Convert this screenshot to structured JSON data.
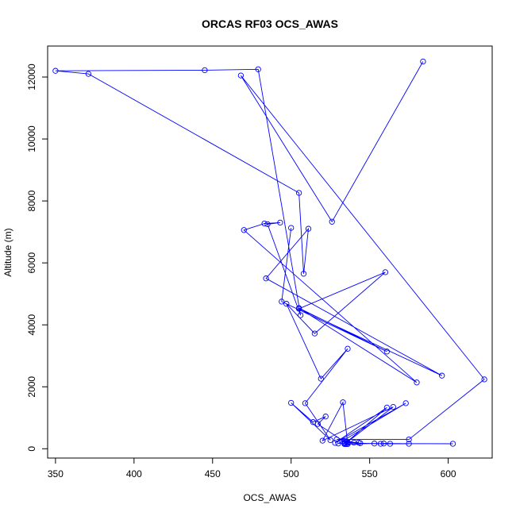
{
  "chart_data": {
    "type": "line",
    "title": "ORCAS RF03 OCS_AWAS",
    "xlabel": "OCS_AWAS",
    "ylabel": "Altitude (m)",
    "xlim": [
      345,
      628
    ],
    "ylim": [
      -300,
      13000
    ],
    "x_ticks": [
      350,
      400,
      450,
      500,
      550,
      600
    ],
    "y_ticks": [
      0,
      2000,
      4000,
      6000,
      8000,
      10000,
      12000
    ],
    "grid": false,
    "markers": "open-circle",
    "series": [
      {
        "color": "#0000ff",
        "points": [
          [
            584,
            12500
          ],
          [
            526,
            7330
          ],
          [
            468,
            12050
          ],
          [
            623,
            2240
          ],
          [
            575,
            300
          ],
          [
            529,
            300
          ],
          [
            540,
            200
          ],
          [
            544,
            180
          ],
          [
            534,
            250
          ],
          [
            536,
            200
          ],
          [
            535,
            150
          ],
          [
            553,
            170
          ],
          [
            603,
            160
          ],
          [
            559,
            170
          ],
          [
            575,
            160
          ],
          [
            563,
            160
          ],
          [
            557,
            160
          ],
          [
            536,
            190
          ],
          [
            543,
            200
          ],
          [
            534,
            200
          ],
          [
            536,
            190
          ],
          [
            534,
            180
          ],
          [
            530,
            170
          ],
          [
            573,
            1470
          ],
          [
            528,
            190
          ],
          [
            561,
            1330
          ],
          [
            534,
            150
          ],
          [
            565,
            1350
          ],
          [
            520,
            260
          ],
          [
            533,
            1500
          ],
          [
            536,
            150
          ],
          [
            517,
            800
          ],
          [
            522,
            1040
          ],
          [
            514,
            860
          ],
          [
            500,
            1480
          ],
          [
            525,
            280
          ],
          [
            509,
            1470
          ],
          [
            536,
            3230
          ],
          [
            519,
            2260
          ],
          [
            497,
            4680
          ],
          [
            515,
            3720
          ],
          [
            560,
            5700
          ],
          [
            505,
            4520
          ],
          [
            596,
            2360
          ],
          [
            484,
            5500
          ],
          [
            511,
            7100
          ],
          [
            508,
            5650
          ],
          [
            505,
            8260
          ],
          [
            371,
            12100
          ],
          [
            350,
            12200
          ],
          [
            445,
            12220
          ],
          [
            479,
            12250
          ],
          [
            506,
            4310
          ],
          [
            485,
            7250
          ],
          [
            493,
            7300
          ],
          [
            483,
            7270
          ],
          [
            470,
            7060
          ],
          [
            580,
            2140
          ],
          [
            505,
            4540
          ],
          [
            561,
            3140
          ],
          [
            494,
            4750
          ],
          [
            500,
            7130
          ]
        ]
      }
    ]
  }
}
